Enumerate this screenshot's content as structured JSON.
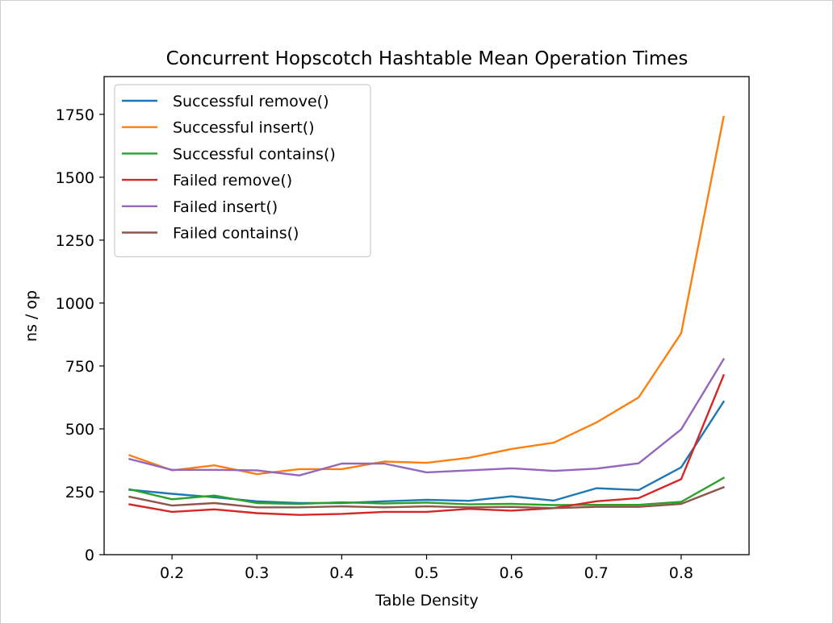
{
  "chart_data": {
    "type": "line",
    "title": "Concurrent Hopscotch Hashtable Mean Operation Times",
    "xlabel": "Table Density",
    "ylabel": "ns / op",
    "xlim": [
      0.12,
      0.88
    ],
    "ylim": [
      0,
      1900
    ],
    "xticks": [
      0.2,
      0.3,
      0.4,
      0.5,
      0.6,
      0.7,
      0.8
    ],
    "xtick_labels": [
      "0.2",
      "0.3",
      "0.4",
      "0.5",
      "0.6",
      "0.7",
      "0.8"
    ],
    "yticks": [
      0,
      250,
      500,
      750,
      1000,
      1250,
      1500,
      1750
    ],
    "ytick_labels": [
      "0",
      "250",
      "500",
      "750",
      "1000",
      "1250",
      "1500",
      "1750"
    ],
    "grid": false,
    "legend_position": "top-left",
    "x": [
      0.15,
      0.2,
      0.25,
      0.3,
      0.35,
      0.4,
      0.45,
      0.5,
      0.55,
      0.6,
      0.65,
      0.7,
      0.75,
      0.8,
      0.85
    ],
    "series": [
      {
        "name": "Successful remove()",
        "color": "#1f77b4",
        "values": [
          258,
          242,
          228,
          212,
          205,
          205,
          212,
          218,
          214,
          232,
          215,
          264,
          257,
          347,
          608
        ]
      },
      {
        "name": "Successful insert()",
        "color": "#ff7f0e",
        "values": [
          395,
          335,
          355,
          320,
          340,
          340,
          370,
          365,
          385,
          420,
          445,
          525,
          625,
          880,
          1740
        ]
      },
      {
        "name": "Successful contains()",
        "color": "#2ca02c",
        "values": [
          260,
          220,
          235,
          205,
          202,
          208,
          203,
          207,
          200,
          202,
          197,
          198,
          198,
          210,
          305
        ]
      },
      {
        "name": "Failed remove()",
        "color": "#d62728",
        "values": [
          200,
          170,
          180,
          165,
          158,
          162,
          170,
          170,
          182,
          175,
          185,
          212,
          225,
          300,
          713
        ]
      },
      {
        "name": "Failed insert()",
        "color": "#9467bd",
        "values": [
          380,
          337,
          337,
          335,
          315,
          362,
          362,
          327,
          335,
          343,
          333,
          342,
          363,
          498,
          777
        ]
      },
      {
        "name": "Failed contains()",
        "color": "#8c564b",
        "values": [
          230,
          195,
          205,
          188,
          188,
          192,
          188,
          192,
          188,
          190,
          185,
          190,
          190,
          202,
          268
        ]
      }
    ]
  }
}
